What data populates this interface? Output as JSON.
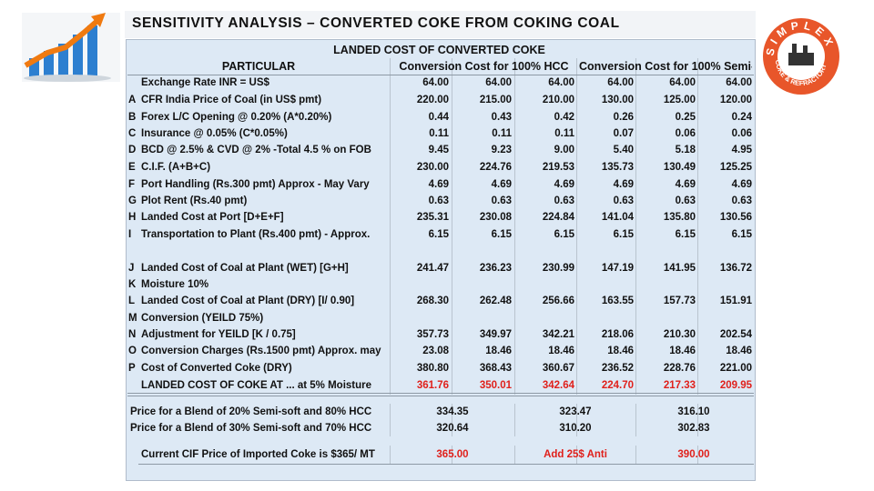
{
  "header": {
    "title": "SENSITIVITY ANALYSIS – CONVERTED COKE FROM COKING COAL"
  },
  "logo": {
    "name": "SIMPLEX",
    "tagline": "COKE & REFRACTORY"
  },
  "table": {
    "title": "LANDED COST OF CONVERTED COKE",
    "columns": [
      "PARTICULAR",
      "Conversion Cost for 100% HCC",
      "Conversion Cost for 100% Semi-"
    ],
    "rows": [
      {
        "label": "Exchange Rate INR = US$",
        "values": [
          "64.00",
          "64.00",
          "64.00",
          "64.00",
          "64.00",
          "64.00"
        ]
      },
      {
        "letter": "A",
        "label": "CFR India Price of Coal (in US$ pmt)",
        "values": [
          "220.00",
          "215.00",
          "210.00",
          "130.00",
          "125.00",
          "120.00"
        ]
      },
      {
        "letter": "B",
        "label": "Forex L/C Opening @ 0.20% (A*0.20%)",
        "values": [
          "0.44",
          "0.43",
          "0.42",
          "0.26",
          "0.25",
          "0.24"
        ]
      },
      {
        "letter": "C",
        "label": "Insurance @ 0.05% (C*0.05%)",
        "values": [
          "0.11",
          "0.11",
          "0.11",
          "0.07",
          "0.06",
          "0.06"
        ]
      },
      {
        "letter": "D",
        "label": "BCD @ 2.5% & CVD @ 2% -Total 4.5 % on FOB",
        "values": [
          "9.45",
          "9.23",
          "9.00",
          "5.40",
          "5.18",
          "4.95"
        ]
      },
      {
        "letter": "E",
        "label": "C.I.F. (A+B+C)",
        "values": [
          "230.00",
          "224.76",
          "219.53",
          "135.73",
          "130.49",
          "125.25"
        ]
      },
      {
        "letter": "F",
        "label": "Port Handling (Rs.300 pmt) Approx - May Vary",
        "values": [
          "4.69",
          "4.69",
          "4.69",
          "4.69",
          "4.69",
          "4.69"
        ]
      },
      {
        "letter": "G",
        "label": "Plot Rent (Rs.40 pmt)",
        "values": [
          "0.63",
          "0.63",
          "0.63",
          "0.63",
          "0.63",
          "0.63"
        ]
      },
      {
        "letter": "H",
        "label": "Landed Cost at Port [D+E+F]",
        "values": [
          "235.31",
          "230.08",
          "224.84",
          "141.04",
          "135.80",
          "130.56"
        ]
      },
      {
        "letter": "I",
        "label": "Transportation to Plant (Rs.400 pmt) - Approx.",
        "values": [
          "6.15",
          "6.15",
          "6.15",
          "6.15",
          "6.15",
          "6.15"
        ]
      },
      {
        "letter": "J",
        "label": "Landed Cost of Coal at Plant (WET) [G+H]",
        "values": [
          "241.47",
          "236.23",
          "230.99",
          "147.19",
          "141.95",
          "136.72"
        ]
      },
      {
        "letter": "K",
        "label": "Moisture 10%"
      },
      {
        "letter": "L",
        "label": "Landed Cost of Coal at Plant (DRY) [I/ 0.90]",
        "values": [
          "268.30",
          "262.48",
          "256.66",
          "163.55",
          "157.73",
          "151.91"
        ]
      },
      {
        "letter": "M",
        "label": "Conversion (YEILD 75%)"
      },
      {
        "letter": "N",
        "label": "Adjustment for YEILD [K / 0.75]",
        "values": [
          "357.73",
          "349.97",
          "342.21",
          "218.06",
          "210.30",
          "202.54"
        ]
      },
      {
        "letter": "O",
        "label": "Conversion Charges (Rs.1500 pmt) Approx. may",
        "values": [
          "23.08",
          "18.46",
          "18.46",
          "18.46",
          "18.46",
          "18.46"
        ]
      },
      {
        "letter": "P",
        "label": "Cost of Converted Coke (DRY)",
        "values": [
          "380.80",
          "368.43",
          "360.67",
          "236.52",
          "228.76",
          "221.00"
        ]
      },
      {
        "label": "LANDED COST OF COKE AT ... at 5% Moisture",
        "values": [
          "361.76",
          "350.01",
          "342.64",
          "224.70",
          "217.33",
          "209.95"
        ]
      }
    ],
    "blends": [
      {
        "label": "Price for a Blend of 20% Semi-soft and 80% HCC",
        "values": [
          "334.35",
          "323.47",
          "316.10"
        ]
      },
      {
        "label": "Price for a Blend of 30% Semi-soft and 70% HCC",
        "values": [
          "320.64",
          "310.20",
          "302.83"
        ]
      }
    ],
    "current": {
      "label": "Current CIF Price of Imported Coke is $365/ MT",
      "values": [
        "365.00",
        "Add 25$ Anti",
        "390.00"
      ]
    }
  }
}
